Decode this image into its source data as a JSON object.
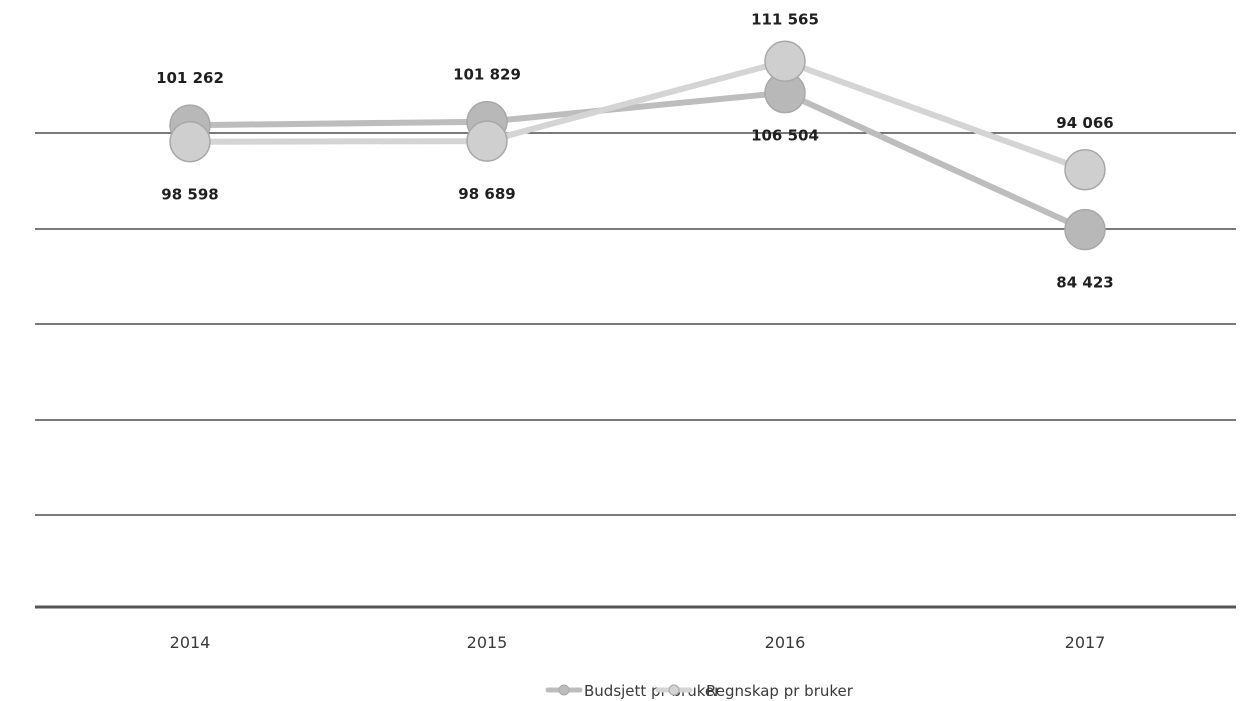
{
  "chart_data": {
    "type": "line",
    "title": "",
    "x": [
      "2014",
      "2015",
      "2016",
      "2017"
    ],
    "series": [
      {
        "name": "Budsjett pr bruker",
        "values": [
          101262,
          101829,
          106504,
          84423
        ],
        "labels": [
          "101 262",
          "101 829",
          "106 504",
          "84 423"
        ]
      },
      {
        "name": "Regnskap pr bruker",
        "values": [
          98598,
          98689,
          111565,
          94066
        ],
        "labels": [
          "98 598",
          "98 689",
          "111 565",
          "94 066"
        ]
      }
    ],
    "legend_position": "bottom",
    "grid": true,
    "colors": [
      "#b5b5b5",
      "#cfcfcf"
    ]
  }
}
